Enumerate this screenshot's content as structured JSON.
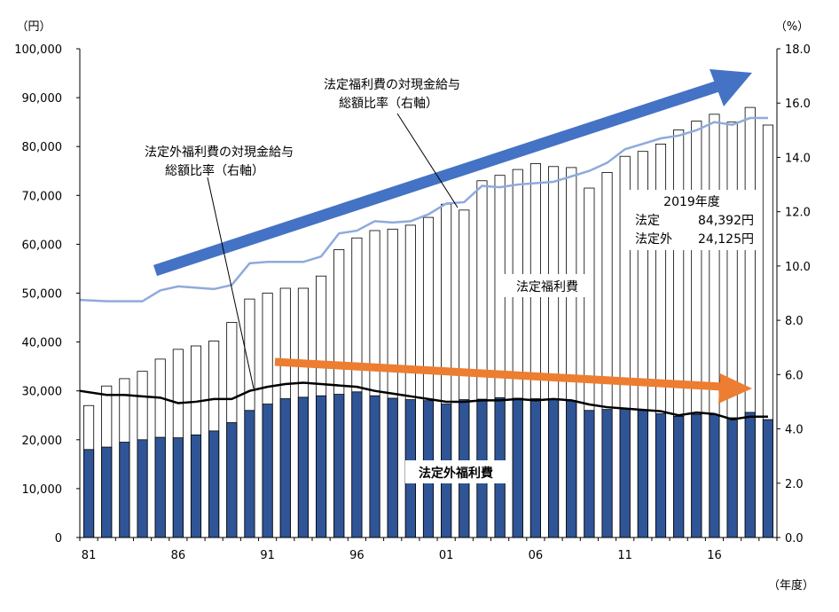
{
  "chart_data": {
    "type": "bar",
    "left_unit": "（円）",
    "right_unit": "（%）",
    "x_unit": "（年度）",
    "left_ticks": [
      "0",
      "10,000",
      "20,000",
      "30,000",
      "40,000",
      "50,000",
      "60,000",
      "70,000",
      "80,000",
      "90,000",
      "100,000"
    ],
    "right_ticks": [
      "0.0",
      "2.0",
      "4.0",
      "6.0",
      "8.0",
      "10.0",
      "12.0",
      "14.0",
      "16.0",
      "18.0"
    ],
    "x_tick_labels": [
      "81",
      "86",
      "91",
      "96",
      "01",
      "06",
      "11",
      "16"
    ],
    "years": [
      1981,
      1982,
      1983,
      1984,
      1985,
      1986,
      1987,
      1988,
      1989,
      1990,
      1991,
      1992,
      1993,
      1994,
      1995,
      1996,
      1997,
      1998,
      1999,
      2000,
      2001,
      2002,
      2003,
      2004,
      2005,
      2006,
      2007,
      2008,
      2009,
      2010,
      2011,
      2012,
      2013,
      2014,
      2015,
      2016,
      2017,
      2018,
      2019
    ],
    "ylim_left": [
      0,
      100000
    ],
    "ylim_right": [
      0,
      18
    ],
    "series": [
      {
        "name": "法定福利費",
        "type": "bar",
        "axis": "left",
        "values": [
          27000,
          31000,
          32500,
          34000,
          36500,
          38500,
          39200,
          40200,
          44000,
          48800,
          50000,
          51000,
          51000,
          53500,
          58900,
          61300,
          62800,
          63100,
          63900,
          65500,
          68200,
          67000,
          73000,
          74100,
          75300,
          76500,
          75900,
          75700,
          71500,
          74700,
          78000,
          79000,
          80500,
          83400,
          85200,
          86600,
          85000,
          88000,
          84392
        ]
      },
      {
        "name": "法定外福利費",
        "type": "bar",
        "axis": "left",
        "values": [
          18000,
          18500,
          19500,
          20000,
          20500,
          20400,
          21000,
          21800,
          23500,
          26000,
          27300,
          28400,
          28700,
          29000,
          29300,
          29800,
          29000,
          28500,
          28200,
          28000,
          27300,
          28200,
          28300,
          28600,
          28500,
          28400,
          28200,
          28000,
          26000,
          26200,
          26300,
          26000,
          25300,
          24800,
          25200,
          25100,
          24500,
          25600,
          24125
        ]
      },
      {
        "name": "法定福利費の対現金給与総額比率（右軸）",
        "type": "line",
        "axis": "right",
        "values": [
          8.75,
          8.7,
          8.7,
          8.7,
          9.1,
          9.25,
          9.2,
          9.15,
          9.3,
          10.1,
          10.15,
          10.15,
          10.15,
          10.35,
          11.2,
          11.3,
          11.65,
          11.6,
          11.65,
          11.9,
          12.3,
          12.35,
          12.95,
          12.9,
          13.0,
          13.05,
          13.1,
          13.3,
          13.5,
          13.8,
          14.3,
          14.5,
          14.7,
          14.8,
          15.0,
          15.3,
          15.2,
          15.45,
          15.45
        ]
      },
      {
        "name": "法定外福利費の対現金給与総額比率（右軸）",
        "type": "line",
        "axis": "right",
        "values": [
          5.4,
          5.25,
          5.25,
          5.2,
          5.15,
          4.95,
          5.0,
          5.1,
          5.1,
          5.4,
          5.55,
          5.65,
          5.7,
          5.65,
          5.6,
          5.55,
          5.4,
          5.3,
          5.2,
          5.1,
          5.0,
          5.0,
          5.05,
          5.05,
          5.1,
          5.05,
          5.1,
          5.05,
          4.9,
          4.8,
          4.75,
          4.7,
          4.65,
          4.5,
          4.6,
          4.55,
          4.35,
          4.45,
          4.45
        ]
      }
    ],
    "annotations": {
      "kotei_ratio": [
        "法定福利費の対現金給与",
        "総額比率（右軸）"
      ],
      "kotei_gai_ratio": [
        "法定外福利費の対現金給与",
        "総額比率（右軸）"
      ],
      "kotei_bar": "法定福利費",
      "kotei_gai_bar": "法定外福利費",
      "box_title": "2019年度",
      "box_rows": [
        {
          "label": "法定",
          "value": "84,392円"
        },
        {
          "label": "法定外",
          "value": "24,125円"
        }
      ]
    },
    "colors": {
      "kotei_bar_fill": "#ffffff",
      "kotei_gai_bar_fill": "#2f5597",
      "kotei_line": "#8faadc",
      "kotei_gai_line": "#000000",
      "up_arrow": "#4472c4",
      "down_arrow": "#ed7d31"
    }
  }
}
